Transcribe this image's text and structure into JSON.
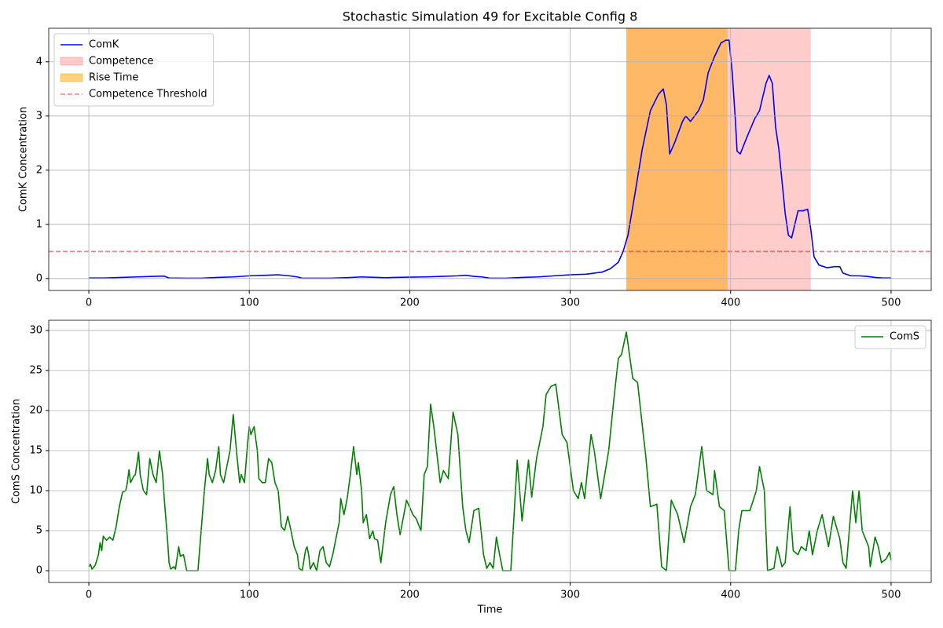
{
  "chart_data": [
    {
      "type": "line",
      "title": "Stochastic Simulation 49 for Excitable Config 8",
      "ylabel": "ComK Concentration",
      "xlim": [
        -25,
        525
      ],
      "xticks": [
        0,
        100,
        200,
        300,
        400,
        500
      ],
      "ylim": [
        -0.22,
        4.62
      ],
      "yticks": [
        0,
        1,
        2,
        3,
        4
      ],
      "grid": true,
      "legend": "upper left",
      "x": [
        0,
        10,
        20,
        30,
        40,
        47,
        50,
        60,
        70,
        80,
        90,
        100,
        110,
        118,
        125,
        130,
        133,
        140,
        150,
        160,
        170,
        180,
        185,
        190,
        200,
        210,
        220,
        230,
        235,
        240,
        245,
        250,
        260,
        270,
        280,
        290,
        300,
        310,
        315,
        320,
        325,
        330,
        333,
        336,
        340,
        345,
        350,
        355,
        358,
        360,
        362,
        365,
        370,
        372,
        375,
        380,
        383,
        386,
        390,
        394,
        397,
        399,
        401,
        403,
        404,
        406,
        410,
        415,
        418,
        422,
        424,
        426,
        428,
        430,
        432,
        434,
        436,
        438,
        440,
        442,
        445,
        448,
        450,
        452,
        455,
        460,
        465,
        468,
        470,
        475,
        480,
        485,
        490,
        495,
        500
      ],
      "series": [
        {
          "name": "ComK",
          "color": "#0000ff",
          "values": [
            0.01,
            0.01,
            0.02,
            0.03,
            0.04,
            0.045,
            0.01,
            0.005,
            0.005,
            0.02,
            0.03,
            0.05,
            0.06,
            0.07,
            0.05,
            0.03,
            0.005,
            0.005,
            0.005,
            0.015,
            0.03,
            0.02,
            0.015,
            0.02,
            0.025,
            0.03,
            0.04,
            0.05,
            0.06,
            0.04,
            0.03,
            0.005,
            0.005,
            0.02,
            0.03,
            0.05,
            0.07,
            0.08,
            0.1,
            0.12,
            0.18,
            0.3,
            0.5,
            0.8,
            1.5,
            2.4,
            3.1,
            3.4,
            3.5,
            3.2,
            2.3,
            2.5,
            2.9,
            3,
            2.9,
            3.1,
            3.3,
            3.8,
            4.1,
            4.35,
            4.4,
            4.4,
            3.8,
            2.9,
            2.35,
            2.3,
            2.6,
            2.95,
            3.1,
            3.6,
            3.75,
            3.6,
            2.8,
            2.4,
            1.8,
            1.2,
            0.8,
            0.75,
            1,
            1.25,
            1.25,
            1.28,
            0.9,
            0.4,
            0.25,
            0.2,
            0.22,
            0.22,
            0.1,
            0.05,
            0.05,
            0.04,
            0.02,
            0.01,
            0.01
          ]
        }
      ],
      "spans": [
        {
          "name": "Competence",
          "start": 335,
          "end": 450,
          "color": "#ff0000",
          "alpha": 0.2
        },
        {
          "name": "Rise Time",
          "start": 335,
          "end": 398,
          "color": "#ffa500",
          "alpha": 0.5
        }
      ],
      "hlines": [
        {
          "name": "Competence Threshold",
          "value": 0.5,
          "color": "#ff0000",
          "alpha": 0.5,
          "dashed": true
        }
      ]
    },
    {
      "type": "line",
      "xlabel": "Time",
      "ylabel": "ComS Concentration",
      "xlim": [
        -25,
        525
      ],
      "xticks": [
        0,
        100,
        200,
        300,
        400,
        500
      ],
      "ylim": [
        -1.47,
        31.27
      ],
      "yticks": [
        0,
        5,
        10,
        15,
        20,
        25,
        30
      ],
      "grid": true,
      "legend": "upper right",
      "x": [
        0,
        1,
        2,
        4,
        6,
        7,
        8,
        9,
        11,
        13,
        15,
        17,
        19,
        21,
        23,
        24,
        25,
        26,
        28,
        29,
        31,
        32,
        34,
        36,
        38,
        40,
        42,
        44,
        46,
        47,
        49,
        50,
        51,
        53,
        54,
        56,
        57,
        59,
        61,
        68,
        70,
        72,
        74,
        75,
        77,
        79,
        81,
        82,
        84,
        86,
        88,
        90,
        92,
        94,
        95,
        97,
        99,
        100,
        101,
        103,
        105,
        106,
        108,
        110,
        112,
        114,
        116,
        118,
        120,
        122,
        124,
        126,
        128,
        130,
        131,
        133,
        135,
        136,
        137,
        138,
        140,
        142,
        144,
        146,
        148,
        150,
        152,
        154,
        156,
        157,
        159,
        161,
        163,
        165,
        167,
        168,
        170,
        171,
        173,
        175,
        177,
        178,
        180,
        182,
        185,
        188,
        190,
        192,
        194,
        198,
        202,
        204,
        207,
        209,
        211,
        213,
        215,
        219,
        221,
        224,
        227,
        230,
        233,
        235,
        237,
        240,
        243,
        246,
        248,
        250,
        252,
        254,
        256,
        258,
        263,
        267,
        270,
        274,
        276,
        279,
        283,
        285,
        288,
        291,
        295,
        298,
        302,
        305,
        307,
        309,
        313,
        315,
        319,
        324,
        327,
        330,
        332,
        335,
        339,
        342,
        345,
        347,
        350,
        354,
        357,
        360,
        363,
        367,
        371,
        375,
        378,
        382,
        385,
        389,
        390,
        393,
        396,
        399,
        403,
        405,
        407,
        412,
        416,
        418,
        421,
        423,
        427,
        429,
        432,
        434,
        437,
        439,
        442,
        444,
        447,
        449,
        451,
        454,
        457,
        461,
        464,
        468,
        470,
        472,
        476,
        478,
        480,
        482,
        486,
        487,
        490,
        492,
        494,
        497,
        499,
        500
      ],
      "series": [
        {
          "name": "ComS",
          "color": "#008000",
          "values": [
            0.5,
            0.8,
            0.2,
            0.7,
            2,
            3.5,
            2.5,
            4.3,
            3.8,
            4.2,
            3.8,
            5.5,
            8,
            9.8,
            10,
            11,
            12.6,
            11,
            11.8,
            12,
            14.8,
            12,
            10,
            9.5,
            14,
            12,
            11,
            15,
            12,
            9,
            4,
            1,
            0.2,
            0.5,
            0.2,
            3,
            1.8,
            2,
            0,
            0,
            5,
            10,
            14,
            12,
            11,
            12.5,
            15.5,
            12,
            11,
            13,
            15,
            19.5,
            15,
            11,
            12,
            11,
            16,
            18,
            17,
            18,
            15,
            11.5,
            11,
            11,
            14,
            13.5,
            11,
            10,
            5.5,
            5,
            6.8,
            5,
            3,
            2,
            0.3,
            0,
            2.5,
            3,
            2,
            0.2,
            1,
            0,
            2.5,
            3,
            1,
            0.5,
            2,
            4,
            6,
            9,
            7,
            9,
            12,
            15.5,
            12,
            13.5,
            10,
            6,
            7,
            4,
            5,
            4,
            3.8,
            1,
            6,
            9.5,
            10.5,
            7,
            4.5,
            8.8,
            7,
            6.5,
            5,
            12,
            13,
            20.8,
            18,
            11,
            12.5,
            11.5,
            19.8,
            17,
            8,
            5,
            3.5,
            7.5,
            7.8,
            2,
            0.3,
            1,
            0.3,
            4.2,
            2,
            0,
            0,
            13.8,
            6.2,
            13.8,
            9.2,
            14,
            18,
            22,
            23,
            23.3,
            17,
            16,
            10,
            9,
            11,
            9,
            17,
            15,
            9,
            15,
            21,
            26.5,
            27,
            29.8,
            24,
            23.5,
            18,
            14.5,
            8,
            8.3,
            0.5,
            0,
            8.8,
            7,
            3.5,
            8,
            9.5,
            15.5,
            10,
            9.5,
            12.5,
            8,
            7.5,
            0,
            0,
            5,
            7.5,
            7.5,
            10,
            13,
            10,
            0,
            0.3,
            3,
            0.5,
            1,
            8,
            2.5,
            2,
            3,
            2.5,
            5,
            2,
            5,
            7,
            3,
            6.8,
            4,
            1,
            0.3,
            10,
            6,
            10,
            5,
            3,
            0.5,
            4.2,
            3,
            1,
            1.5,
            2.3,
            1.3
          ]
        }
      ]
    }
  ]
}
